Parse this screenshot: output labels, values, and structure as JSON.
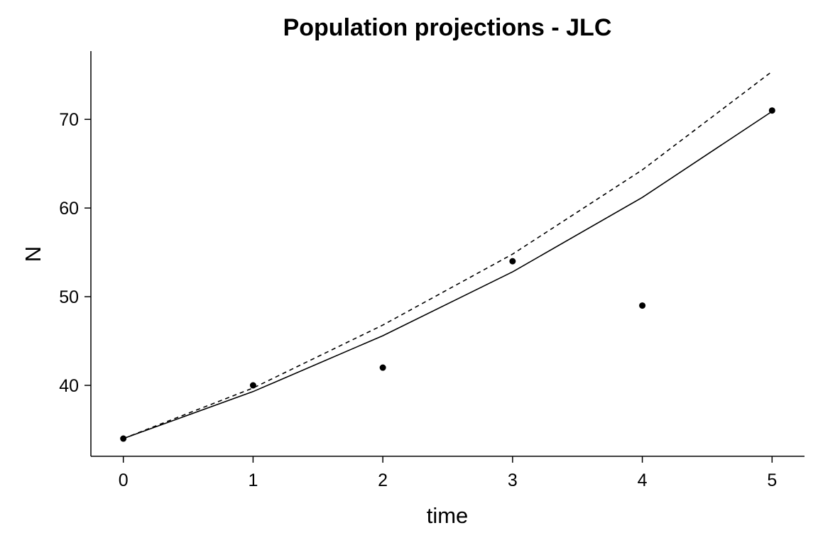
{
  "chart_data": {
    "type": "line",
    "title": "Population projections - JLC",
    "xlabel": "time",
    "ylabel": "N",
    "xlim": [
      -0.25,
      5.25
    ],
    "ylim": [
      32.0,
      77.7
    ],
    "xticks": [
      0,
      1,
      2,
      3,
      4,
      5
    ],
    "yticks": [
      40,
      50,
      60,
      70
    ],
    "grid": false,
    "legend": "none",
    "series": [
      {
        "style": "solid",
        "color": "#000000",
        "x": [
          0,
          1,
          2,
          3,
          4,
          5
        ],
        "y": [
          34,
          39.3,
          45.6,
          52.8,
          61.2,
          70.9
        ]
      },
      {
        "style": "dashed",
        "color": "#000000",
        "x": [
          0,
          1,
          2,
          3,
          4,
          5
        ],
        "y": [
          34,
          39.7,
          46.8,
          54.8,
          64.3,
          75.4
        ]
      },
      {
        "style": "points",
        "color": "#000000",
        "x": [
          0,
          1,
          2,
          3,
          4,
          5
        ],
        "y": [
          34,
          40,
          42,
          54,
          49,
          71
        ]
      }
    ]
  }
}
